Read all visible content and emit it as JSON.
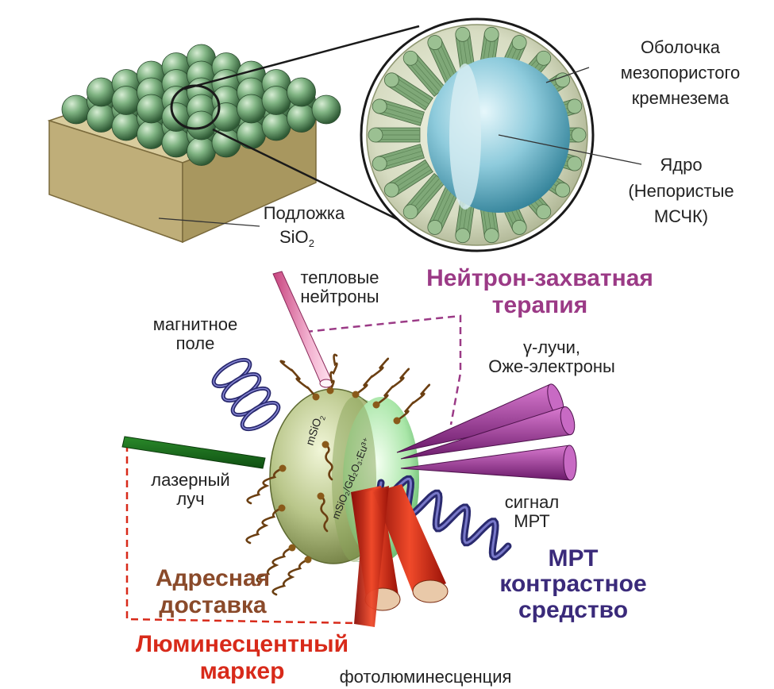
{
  "top": {
    "substrate_label": "Подложка",
    "substrate_formula": "SiO",
    "substrate_formula_sub": "2",
    "shell_line1": "Оболочка",
    "shell_line2": "мезопористого",
    "shell_line3": "кремнезема",
    "core_line1": "Ядро",
    "core_line2": "(Непористые",
    "core_line3": "МСЧК)"
  },
  "bottom": {
    "thermal_neutrons_1": "тепловые",
    "thermal_neutrons_2": "нейтроны",
    "neutron_therapy_1": "Нейтрон-захватная",
    "neutron_therapy_2": "терапия",
    "magnetic_field_1": "магнитное",
    "magnetic_field_2": "поле",
    "gamma_1": "γ-лучи,",
    "gamma_2": "Оже-электроны",
    "laser_1": "лазерный",
    "laser_2": "луч",
    "mri_signal_1": "сигнал",
    "mri_signal_2": "МРТ",
    "mri_contrast_1": "МРТ",
    "mri_contrast_2": "контрастное",
    "mri_contrast_3": "средство",
    "targeted_1": "Адресная",
    "targeted_2": "доставка",
    "lum_marker_1": "Люминесцентный",
    "lum_marker_2": "маркер",
    "photoluminescence": "фотолюминесценция",
    "outer_layer": "mSiO",
    "outer_layer_sub": "2",
    "inner_layer": "mSiO₂/Gd₂O₃:Eu³⁺"
  },
  "colors": {
    "neutron": "#9b3a86",
    "mri": "#3a2a7a",
    "targeted": "#8a4a2a",
    "luminescent": "#d82a1a",
    "sphere_green": "#6fa874",
    "substrate": "#cbbd8d"
  }
}
